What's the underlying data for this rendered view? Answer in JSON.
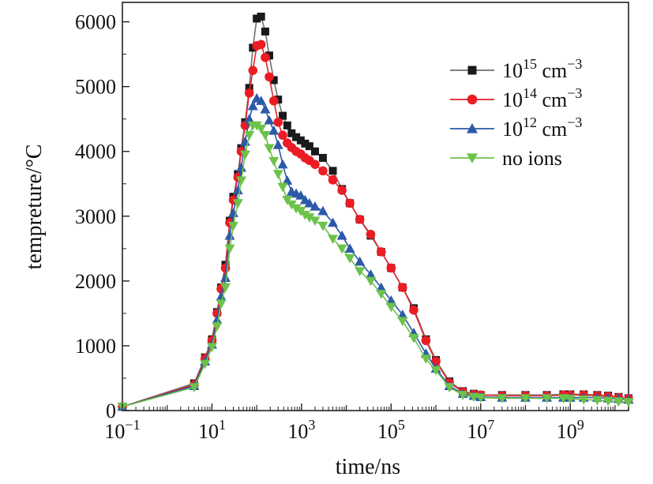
{
  "chart_data": {
    "type": "line",
    "title": "",
    "xlabel": "time/ns",
    "ylabel": "tempreture/°C",
    "xscale": "log",
    "xlim": [
      0.1,
      20000000000
    ],
    "ylim": [
      0,
      6300
    ],
    "grid": false,
    "legend_position": "top-right",
    "x_ticks": [
      {
        "value": 0.1,
        "base": "10",
        "exp": "−1"
      },
      {
        "value": 10,
        "base": "10",
        "exp": "1"
      },
      {
        "value": 1000,
        "base": "10",
        "exp": "3"
      },
      {
        "value": 100000,
        "base": "10",
        "exp": "5"
      },
      {
        "value": 10000000,
        "base": "10",
        "exp": "7"
      },
      {
        "value": 1000000000,
        "base": "10",
        "exp": "9"
      }
    ],
    "y_ticks": [
      0,
      1000,
      2000,
      3000,
      4000,
      5000,
      6000
    ],
    "y_tick_labels": [
      "0",
      "1000",
      "2000",
      "3000",
      "4000",
      "5000",
      "6000"
    ],
    "series": [
      {
        "base": "10",
        "exp": "15",
        "unit": " cm",
        "unit_exp": "−3",
        "color": "#6e6e6e",
        "marker_color": "#1a1a1a",
        "marker": "square",
        "points": [
          [
            0.1,
            60
          ],
          [
            4,
            420
          ],
          [
            7,
            820
          ],
          [
            10,
            1100
          ],
          [
            13,
            1520
          ],
          [
            16,
            1900
          ],
          [
            20,
            2250
          ],
          [
            25,
            2930
          ],
          [
            30,
            3300
          ],
          [
            38,
            3650
          ],
          [
            45,
            4050
          ],
          [
            55,
            4450
          ],
          [
            68,
            4980
          ],
          [
            82,
            5600
          ],
          [
            100,
            6050
          ],
          [
            125,
            6080
          ],
          [
            155,
            5850
          ],
          [
            190,
            5480
          ],
          [
            240,
            5100
          ],
          [
            300,
            4800
          ],
          [
            380,
            4550
          ],
          [
            480,
            4400
          ],
          [
            600,
            4280
          ],
          [
            760,
            4220
          ],
          [
            960,
            4170
          ],
          [
            1200,
            4120
          ],
          [
            1500,
            4080
          ],
          [
            2000,
            4000
          ],
          [
            3000,
            3900
          ],
          [
            5000,
            3700
          ],
          [
            8000,
            3420
          ],
          [
            12000,
            3200
          ],
          [
            20000,
            2950
          ],
          [
            35000,
            2700
          ],
          [
            60000,
            2450
          ],
          [
            100000,
            2200
          ],
          [
            180000,
            1900
          ],
          [
            320000,
            1580
          ],
          [
            600000,
            1100
          ],
          [
            1000000,
            780
          ],
          [
            2000000,
            450
          ],
          [
            4000000,
            300
          ],
          [
            7000000,
            260
          ],
          [
            10000000,
            240
          ],
          [
            30000000,
            240
          ],
          [
            100000000,
            240
          ],
          [
            300000000,
            240
          ],
          [
            700000000,
            250
          ],
          [
            1000000000,
            250
          ],
          [
            2000000000,
            250
          ],
          [
            4000000000,
            240
          ],
          [
            7000000000,
            230
          ],
          [
            12000000000,
            210
          ],
          [
            20000000000,
            190
          ]
        ]
      },
      {
        "base": "10",
        "exp": "14",
        "unit": " cm",
        "unit_exp": "−3",
        "color": "#e0232b",
        "marker_color": "#ec1c24",
        "marker": "circle",
        "points": [
          [
            0.1,
            60
          ],
          [
            4,
            400
          ],
          [
            7,
            800
          ],
          [
            10,
            1080
          ],
          [
            13,
            1500
          ],
          [
            16,
            1880
          ],
          [
            20,
            2200
          ],
          [
            25,
            2900
          ],
          [
            30,
            3250
          ],
          [
            38,
            3600
          ],
          [
            45,
            4000
          ],
          [
            55,
            4400
          ],
          [
            68,
            4900
          ],
          [
            82,
            5250
          ],
          [
            100,
            5630
          ],
          [
            125,
            5650
          ],
          [
            155,
            5450
          ],
          [
            190,
            5150
          ],
          [
            240,
            4780
          ],
          [
            300,
            4450
          ],
          [
            380,
            4250
          ],
          [
            480,
            4130
          ],
          [
            600,
            4060
          ],
          [
            760,
            4000
          ],
          [
            960,
            3960
          ],
          [
            1200,
            3900
          ],
          [
            1500,
            3860
          ],
          [
            2000,
            3800
          ],
          [
            3000,
            3700
          ],
          [
            5000,
            3560
          ],
          [
            8000,
            3400
          ],
          [
            12000,
            3200
          ],
          [
            20000,
            2950
          ],
          [
            35000,
            2720
          ],
          [
            60000,
            2450
          ],
          [
            100000,
            2200
          ],
          [
            180000,
            1900
          ],
          [
            320000,
            1550
          ],
          [
            600000,
            1080
          ],
          [
            1000000,
            760
          ],
          [
            2000000,
            430
          ],
          [
            4000000,
            290
          ],
          [
            7000000,
            250
          ],
          [
            10000000,
            240
          ],
          [
            30000000,
            230
          ],
          [
            100000000,
            230
          ],
          [
            300000000,
            230
          ],
          [
            700000000,
            240
          ],
          [
            1000000000,
            240
          ],
          [
            2000000000,
            240
          ],
          [
            4000000000,
            230
          ],
          [
            7000000000,
            220
          ],
          [
            12000000000,
            200
          ],
          [
            20000000000,
            185
          ]
        ]
      },
      {
        "base": "10",
        "exp": "12",
        "unit": " cm",
        "unit_exp": "−3",
        "color": "#2a59a8",
        "marker_color": "#2c5aa8",
        "marker": "triangle-up",
        "points": [
          [
            0.1,
            60
          ],
          [
            4,
            380
          ],
          [
            7,
            760
          ],
          [
            10,
            1020
          ],
          [
            13,
            1400
          ],
          [
            16,
            1760
          ],
          [
            20,
            2050
          ],
          [
            25,
            2700
          ],
          [
            30,
            3050
          ],
          [
            38,
            3400
          ],
          [
            45,
            3750
          ],
          [
            55,
            4150
          ],
          [
            68,
            4500
          ],
          [
            82,
            4700
          ],
          [
            100,
            4820
          ],
          [
            125,
            4780
          ],
          [
            155,
            4650
          ],
          [
            190,
            4480
          ],
          [
            240,
            4320
          ],
          [
            300,
            4100
          ],
          [
            380,
            3800
          ],
          [
            480,
            3550
          ],
          [
            600,
            3380
          ],
          [
            760,
            3350
          ],
          [
            960,
            3320
          ],
          [
            1200,
            3250
          ],
          [
            1500,
            3200
          ],
          [
            2000,
            3150
          ],
          [
            3000,
            3080
          ],
          [
            5000,
            2900
          ],
          [
            8000,
            2700
          ],
          [
            12000,
            2500
          ],
          [
            20000,
            2300
          ],
          [
            35000,
            2100
          ],
          [
            60000,
            1900
          ],
          [
            100000,
            1700
          ],
          [
            180000,
            1480
          ],
          [
            320000,
            1200
          ],
          [
            600000,
            880
          ],
          [
            1000000,
            650
          ],
          [
            2000000,
            380
          ],
          [
            4000000,
            260
          ],
          [
            7000000,
            230
          ],
          [
            10000000,
            210
          ],
          [
            30000000,
            200
          ],
          [
            100000000,
            200
          ],
          [
            300000000,
            200
          ],
          [
            700000000,
            200
          ],
          [
            1000000000,
            200
          ],
          [
            2000000000,
            200
          ],
          [
            4000000000,
            200
          ],
          [
            7000000000,
            190
          ],
          [
            12000000000,
            180
          ],
          [
            20000000000,
            170
          ]
        ]
      },
      {
        "base": "",
        "exp": "",
        "unit": "no ions",
        "unit_exp": "",
        "color": "#6cc24a",
        "marker_color": "#6cc24a",
        "marker": "triangle-down",
        "points": [
          [
            0.1,
            60
          ],
          [
            4,
            360
          ],
          [
            7,
            720
          ],
          [
            10,
            980
          ],
          [
            13,
            1300
          ],
          [
            16,
            1650
          ],
          [
            20,
            1900
          ],
          [
            25,
            2500
          ],
          [
            30,
            2850
          ],
          [
            38,
            3200
          ],
          [
            45,
            3550
          ],
          [
            55,
            3950
          ],
          [
            68,
            4250
          ],
          [
            82,
            4400
          ],
          [
            100,
            4400
          ],
          [
            125,
            4350
          ],
          [
            155,
            4250
          ],
          [
            190,
            4050
          ],
          [
            240,
            3850
          ],
          [
            300,
            3650
          ],
          [
            380,
            3450
          ],
          [
            480,
            3250
          ],
          [
            600,
            3180
          ],
          [
            760,
            3120
          ],
          [
            960,
            3080
          ],
          [
            1200,
            3020
          ],
          [
            1500,
            2980
          ],
          [
            2000,
            2930
          ],
          [
            3000,
            2850
          ],
          [
            5000,
            2650
          ],
          [
            8000,
            2500
          ],
          [
            12000,
            2350
          ],
          [
            20000,
            2150
          ],
          [
            35000,
            2000
          ],
          [
            60000,
            1800
          ],
          [
            100000,
            1600
          ],
          [
            180000,
            1380
          ],
          [
            320000,
            1120
          ],
          [
            600000,
            800
          ],
          [
            1000000,
            620
          ],
          [
            2000000,
            360
          ],
          [
            4000000,
            240
          ],
          [
            7000000,
            210
          ],
          [
            10000000,
            200
          ],
          [
            30000000,
            190
          ],
          [
            100000000,
            190
          ],
          [
            300000000,
            190
          ],
          [
            700000000,
            190
          ],
          [
            1000000000,
            180
          ],
          [
            2000000000,
            170
          ],
          [
            4000000000,
            160
          ],
          [
            7000000000,
            150
          ],
          [
            12000000000,
            140
          ],
          [
            20000000000,
            130
          ]
        ]
      }
    ]
  }
}
